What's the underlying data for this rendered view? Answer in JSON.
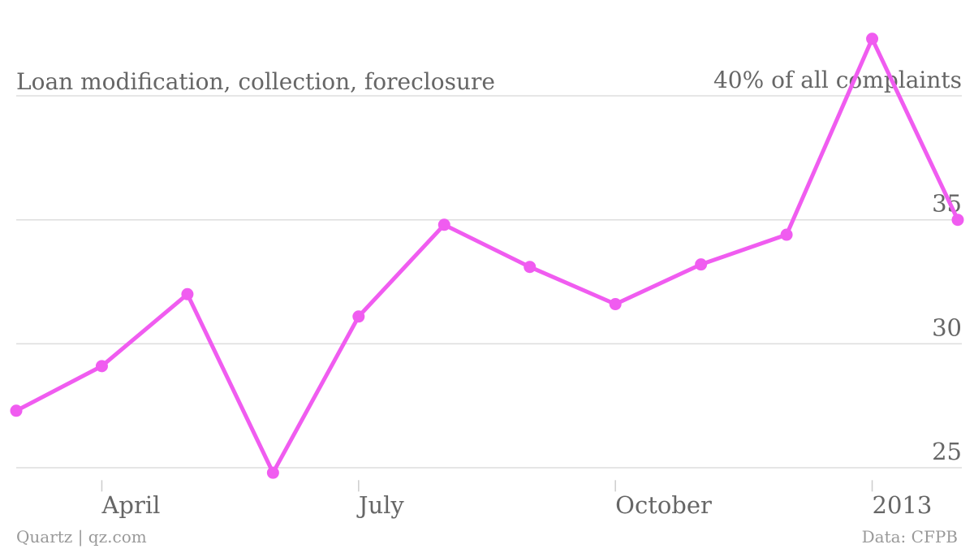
{
  "chart_data": {
    "type": "line",
    "title": "Loan modification, collection, foreclosure",
    "categories": [
      null,
      "April",
      null,
      null,
      "July",
      null,
      null,
      "October",
      null,
      null,
      "2013",
      null
    ],
    "series": [
      {
        "name": "Loan modification, collection, foreclosure",
        "color": "#f05cf0",
        "values": [
          27.3,
          29.1,
          32.0,
          24.8,
          31.1,
          34.8,
          33.1,
          31.6,
          33.2,
          34.4,
          42.3,
          35.0
        ]
      }
    ],
    "ylim": [
      24.5,
      42.5
    ],
    "yticks": [
      25,
      30,
      35,
      {
        "value": 40,
        "label": "40% of all complaints"
      }
    ],
    "grid": true,
    "source": "Data: CFPB",
    "credit": "Quartz | qz.com"
  }
}
